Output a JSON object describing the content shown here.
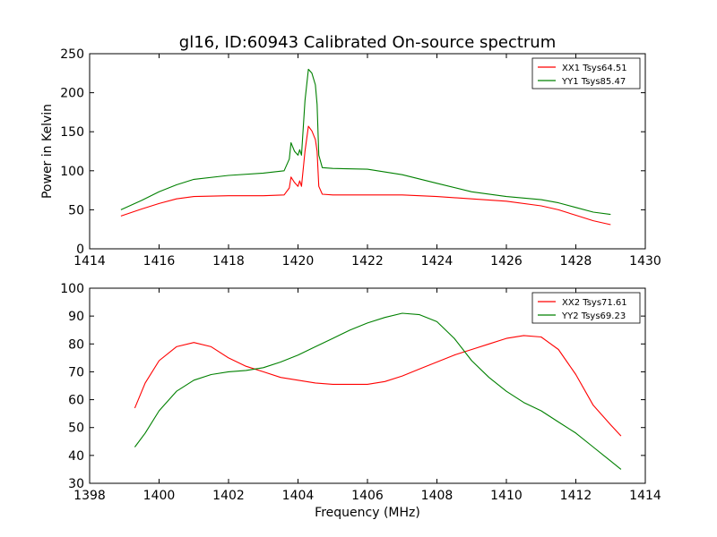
{
  "title": "gl16, ID:60943 Calibrated On-source spectrum",
  "chart_data": [
    {
      "type": "line",
      "ylabel": "Power in Kelvin",
      "xlabel": "",
      "xlim": [
        1414,
        1430
      ],
      "ylim": [
        0,
        250
      ],
      "xticks": [
        1414,
        1416,
        1418,
        1420,
        1422,
        1424,
        1426,
        1428,
        1430
      ],
      "yticks": [
        0,
        50,
        100,
        150,
        200,
        250
      ],
      "grid": false,
      "legend_position": "top-right",
      "series": [
        {
          "name": "XX1 Tsys64.51",
          "color": "#ff0000",
          "x": [
            1414.9,
            1415.5,
            1416.0,
            1416.5,
            1417.0,
            1418.0,
            1419.0,
            1419.6,
            1419.75,
            1419.8,
            1419.9,
            1420.0,
            1420.05,
            1420.1,
            1420.2,
            1420.3,
            1420.4,
            1420.5,
            1420.55,
            1420.6,
            1420.7,
            1421.0,
            1422.0,
            1423.0,
            1424.0,
            1425.0,
            1426.0,
            1427.0,
            1427.5,
            1428.0,
            1428.5,
            1429.0
          ],
          "y": [
            42,
            51,
            58,
            64,
            67,
            68,
            68,
            69,
            78,
            92,
            85,
            80,
            87,
            80,
            125,
            157,
            151,
            140,
            125,
            80,
            70,
            69,
            69,
            69,
            67,
            64,
            61,
            55,
            50,
            43,
            36,
            31
          ]
        },
        {
          "name": "YY1 Tsys85.47",
          "color": "#008000",
          "x": [
            1414.9,
            1415.5,
            1416.0,
            1416.5,
            1417.0,
            1418.0,
            1419.0,
            1419.6,
            1419.75,
            1419.8,
            1419.9,
            1420.0,
            1420.05,
            1420.1,
            1420.2,
            1420.3,
            1420.4,
            1420.5,
            1420.55,
            1420.6,
            1420.7,
            1421.0,
            1422.0,
            1423.0,
            1424.0,
            1425.0,
            1426.0,
            1427.0,
            1427.5,
            1428.0,
            1428.5,
            1429.0
          ],
          "y": [
            50,
            62,
            73,
            82,
            89,
            94,
            97,
            100,
            115,
            136,
            125,
            120,
            127,
            120,
            190,
            230,
            225,
            210,
            185,
            120,
            104,
            103,
            102,
            95,
            84,
            73,
            67,
            63,
            59,
            53,
            47,
            44
          ]
        }
      ]
    },
    {
      "type": "line",
      "ylabel": "",
      "xlabel": "Frequency (MHz)",
      "xlim": [
        1398,
        1414
      ],
      "ylim": [
        30,
        100
      ],
      "xticks": [
        1398,
        1400,
        1402,
        1404,
        1406,
        1408,
        1410,
        1412,
        1414
      ],
      "yticks": [
        30,
        40,
        50,
        60,
        70,
        80,
        90,
        100
      ],
      "grid": false,
      "legend_position": "top-right",
      "series": [
        {
          "name": "XX2 Tsys71.61",
          "color": "#ff0000",
          "x": [
            1399.3,
            1399.6,
            1400.0,
            1400.5,
            1401.0,
            1401.5,
            1402.0,
            1402.5,
            1403.0,
            1403.5,
            1404.0,
            1404.5,
            1405.0,
            1405.5,
            1406.0,
            1406.5,
            1407.0,
            1407.5,
            1408.0,
            1408.5,
            1409.0,
            1409.5,
            1410.0,
            1410.5,
            1411.0,
            1411.5,
            1412.0,
            1412.5,
            1413.0,
            1413.3
          ],
          "y": [
            57,
            66,
            74,
            79,
            80.5,
            79,
            75,
            72,
            70,
            68,
            67,
            66,
            65.5,
            65.5,
            65.5,
            66.5,
            68.5,
            71,
            73.5,
            76,
            78,
            80,
            82,
            83,
            82.5,
            78,
            69,
            58,
            51,
            47
          ]
        },
        {
          "name": "YY2 Tsys69.23",
          "color": "#008000",
          "x": [
            1399.3,
            1399.6,
            1400.0,
            1400.5,
            1401.0,
            1401.5,
            1402.0,
            1402.5,
            1403.0,
            1403.5,
            1404.0,
            1404.5,
            1405.0,
            1405.5,
            1406.0,
            1406.5,
            1407.0,
            1407.5,
            1408.0,
            1408.5,
            1409.0,
            1409.5,
            1410.0,
            1410.5,
            1411.0,
            1411.5,
            1412.0,
            1412.5,
            1413.0,
            1413.3
          ],
          "y": [
            43,
            48,
            56,
            63,
            67,
            69,
            70,
            70.5,
            71.5,
            73.5,
            76,
            79,
            82,
            85,
            87.5,
            89.5,
            91,
            90.5,
            88,
            82,
            74,
            68,
            63,
            59,
            56,
            52,
            48,
            43,
            38,
            35
          ]
        }
      ]
    }
  ]
}
